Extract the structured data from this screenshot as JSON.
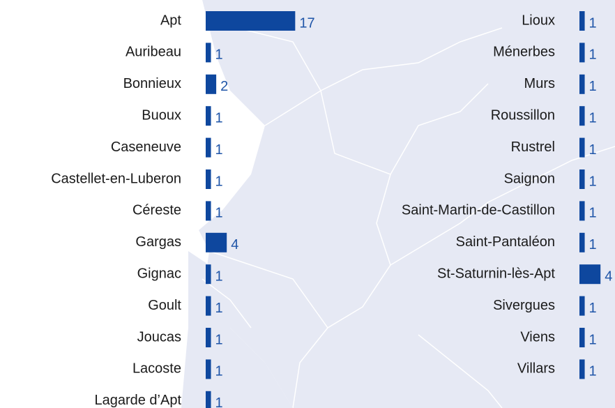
{
  "chart_data": [
    {
      "type": "bar",
      "orientation": "horizontal",
      "color": "#0e479e",
      "categories": [
        "Apt",
        "Auribeau",
        "Bonnieux",
        "Buoux",
        "Caseneuve",
        "Castellet-en-Luberon",
        "Céreste",
        "Gargas",
        "Gignac",
        "Goult",
        "Joucas",
        "Lacoste",
        "Lagarde d’Apt"
      ],
      "values": [
        17,
        1,
        2,
        1,
        1,
        1,
        1,
        4,
        1,
        1,
        1,
        1,
        1
      ]
    },
    {
      "type": "bar",
      "orientation": "horizontal",
      "color": "#0e479e",
      "categories": [
        "Lioux",
        "Ménerbes",
        "Murs",
        "Roussillon",
        "Rustrel",
        "Saignon",
        "Saint-Martin-de-Castillon",
        "Saint-Pantaléon",
        "St-Saturnin-lès-Apt",
        "Sivergues",
        "Viens",
        "Villars"
      ],
      "values": [
        1,
        1,
        1,
        1,
        1,
        1,
        1,
        1,
        4,
        1,
        1,
        1
      ]
    }
  ]
}
